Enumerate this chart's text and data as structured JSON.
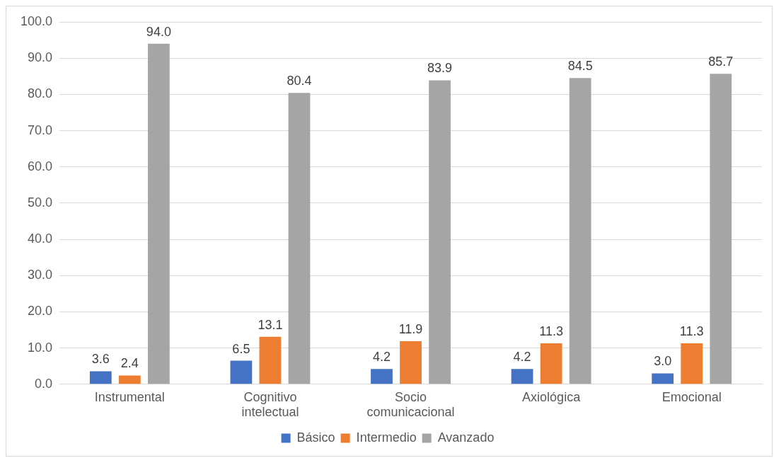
{
  "chart_data": {
    "type": "bar",
    "categories": [
      "Instrumental",
      "Cognitivo intelectual",
      "Socio comunicacional",
      "Axiológica",
      "Emocional"
    ],
    "series": [
      {
        "name": "Básico",
        "color": "#4472c4",
        "values": [
          3.6,
          6.5,
          4.2,
          4.2,
          3.0
        ],
        "value_labels": [
          "3.6",
          "6.5",
          "4.2",
          "4.2",
          "3.0"
        ]
      },
      {
        "name": "Intermedio",
        "color": "#ed7d31",
        "values": [
          2.4,
          13.1,
          11.9,
          11.3,
          11.3
        ],
        "value_labels": [
          "2.4",
          "13.1",
          "11.9",
          "11.3",
          "11.3"
        ]
      },
      {
        "name": "Avanzado",
        "color": "#a5a5a5",
        "values": [
          94.0,
          80.4,
          83.9,
          84.5,
          85.7
        ],
        "value_labels": [
          "94.0",
          "80.4",
          "83.9",
          "84.5",
          "85.7"
        ]
      }
    ],
    "ylim": [
      0,
      100
    ],
    "yticks": [
      {
        "value": 0,
        "label": "0.0"
      },
      {
        "value": 10,
        "label": "10.0"
      },
      {
        "value": 20,
        "label": "20.0"
      },
      {
        "value": 30,
        "label": "30.0"
      },
      {
        "value": 40,
        "label": "40.0"
      },
      {
        "value": 50,
        "label": "50.0"
      },
      {
        "value": 60,
        "label": "60.0"
      },
      {
        "value": 70,
        "label": "70.0"
      },
      {
        "value": 80,
        "label": "80.0"
      },
      {
        "value": 90,
        "label": "90.0"
      },
      {
        "value": 100,
        "label": "100.0"
      }
    ],
    "grid": "y",
    "legend": "bottom"
  }
}
